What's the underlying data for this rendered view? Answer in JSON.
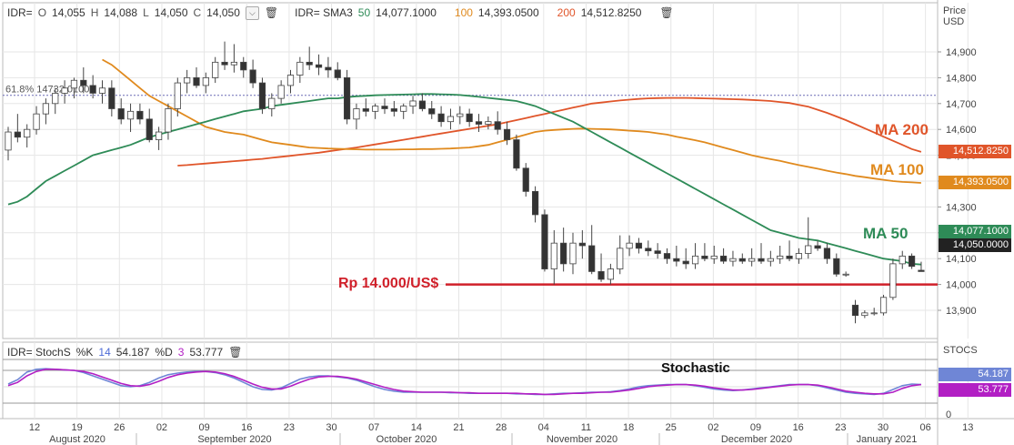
{
  "header": {
    "symbol": "IDR=",
    "ohlc": {
      "o_label": "O",
      "o": "14,055",
      "h_label": "H",
      "h": "14,088",
      "l_label": "L",
      "l": "14,050",
      "c_label": "C",
      "c": "14,050"
    },
    "sma_label": "IDR= SMA3",
    "sma": [
      {
        "period": "50",
        "value": "14,077.1000",
        "color": "#2e8b57"
      },
      {
        "period": "100",
        "value": "14,393.0500",
        "color": "#e08a1e"
      },
      {
        "period": "200",
        "value": "14,512.8250",
        "color": "#e0552a"
      }
    ],
    "dropdown_icon": "chevron-down-icon",
    "trash_icon": "trash-icon"
  },
  "price_axis": {
    "title_line1": "Price",
    "title_line2": "USD",
    "ticks": [
      "14,900",
      "14,800",
      "14,700",
      "14,600",
      "14,500",
      "14,400",
      "14,300",
      "14,200",
      "14,100",
      "14,000",
      "13,900"
    ]
  },
  "tags": {
    "ma200": "14,512.8250",
    "ma100": "14,393.0500",
    "ma50": "14,077.1000",
    "close": "14,050.0000"
  },
  "fib": {
    "label": "61.8%",
    "value": "14732.0100"
  },
  "annotations": {
    "ma200": "MA 200",
    "ma100": "MA 100",
    "ma50": "MA 50",
    "support": "Rp 14.000/US$",
    "stochastic": "Stochastic"
  },
  "stoch_header": {
    "label": "IDR= StochS",
    "k_label": "%K",
    "k_period": "14",
    "k_value": "54.187",
    "d_label": "%D",
    "d_period": "3",
    "d_value": "53.777",
    "right_title": "STOCS"
  },
  "stoch_tags": {
    "k": "54.187",
    "d": "53.777",
    "zero": "0"
  },
  "x_axis": {
    "days": [
      "12",
      "19",
      "26",
      "02",
      "09",
      "16",
      "23",
      "30",
      "07",
      "14",
      "21",
      "28",
      "04",
      "11",
      "18",
      "25",
      "02",
      "09",
      "16",
      "23",
      "30",
      "06",
      "13"
    ],
    "months": [
      "August 2020",
      "September 2020",
      "October 2020",
      "November 2020",
      "December 2020",
      "January 2021"
    ]
  },
  "colors": {
    "ma50": "#2e8b57",
    "ma100": "#e08a1e",
    "ma200": "#e0552a",
    "support": "#d0202a",
    "stoch_k": "#6f86d6",
    "stoch_d": "#b21fc4",
    "candle_up": "#ffffff",
    "candle_down": "#333333"
  },
  "chart_data": {
    "type": "line",
    "candles": [
      [
        14520,
        14610,
        14480,
        14590
      ],
      [
        14590,
        14660,
        14550,
        14570
      ],
      [
        14570,
        14620,
        14530,
        14600
      ],
      [
        14600,
        14690,
        14580,
        14660
      ],
      [
        14660,
        14720,
        14620,
        14700
      ],
      [
        14700,
        14760,
        14660,
        14740
      ],
      [
        14740,
        14790,
        14700,
        14760
      ],
      [
        14760,
        14800,
        14720,
        14790
      ],
      [
        14790,
        14840,
        14740,
        14770
      ],
      [
        14770,
        14810,
        14720,
        14740
      ],
      [
        14740,
        14790,
        14700,
        14760
      ],
      [
        14760,
        14790,
        14650,
        14680
      ],
      [
        14680,
        14720,
        14620,
        14640
      ],
      [
        14640,
        14700,
        14590,
        14670
      ],
      [
        14670,
        14700,
        14620,
        14640
      ],
      [
        14640,
        14680,
        14550,
        14560
      ],
      [
        14560,
        14610,
        14520,
        14590
      ],
      [
        14590,
        14700,
        14560,
        14680
      ],
      [
        14680,
        14800,
        14650,
        14780
      ],
      [
        14780,
        14830,
        14740,
        14800
      ],
      [
        14800,
        14840,
        14760,
        14770
      ],
      [
        14770,
        14820,
        14740,
        14800
      ],
      [
        14800,
        14880,
        14780,
        14860
      ],
      [
        14860,
        14940,
        14830,
        14850
      ],
      [
        14850,
        14930,
        14820,
        14860
      ],
      [
        14860,
        14880,
        14800,
        14830
      ],
      [
        14830,
        14870,
        14760,
        14780
      ],
      [
        14780,
        14800,
        14660,
        14680
      ],
      [
        14680,
        14740,
        14650,
        14720
      ],
      [
        14720,
        14790,
        14700,
        14770
      ],
      [
        14770,
        14830,
        14740,
        14810
      ],
      [
        14810,
        14880,
        14780,
        14860
      ],
      [
        14860,
        14920,
        14830,
        14850
      ],
      [
        14850,
        14890,
        14810,
        14840
      ],
      [
        14840,
        14880,
        14800,
        14830
      ],
      [
        14830,
        14860,
        14790,
        14800
      ],
      [
        14800,
        14830,
        14620,
        14640
      ],
      [
        14640,
        14700,
        14600,
        14680
      ],
      [
        14680,
        14720,
        14650,
        14670
      ],
      [
        14670,
        14700,
        14640,
        14690
      ],
      [
        14690,
        14720,
        14660,
        14680
      ],
      [
        14680,
        14710,
        14650,
        14670
      ],
      [
        14670,
        14700,
        14640,
        14690
      ],
      [
        14690,
        14730,
        14660,
        14710
      ],
      [
        14710,
        14740,
        14670,
        14680
      ],
      [
        14680,
        14710,
        14640,
        14660
      ],
      [
        14660,
        14690,
        14610,
        14630
      ],
      [
        14630,
        14680,
        14600,
        14650
      ],
      [
        14650,
        14690,
        14620,
        14660
      ],
      [
        14660,
        14680,
        14610,
        14630
      ],
      [
        14630,
        14660,
        14590,
        14620
      ],
      [
        14620,
        14650,
        14600,
        14630
      ],
      [
        14630,
        14670,
        14580,
        14600
      ],
      [
        14600,
        14630,
        14540,
        14560
      ],
      [
        14560,
        14580,
        14440,
        14450
      ],
      [
        14450,
        14470,
        14340,
        14360
      ],
      [
        14360,
        14380,
        14240,
        14270
      ],
      [
        14270,
        14290,
        14050,
        14060
      ],
      [
        14060,
        14210,
        14000,
        14160
      ],
      [
        14160,
        14220,
        14050,
        14080
      ],
      [
        14080,
        14200,
        14040,
        14160
      ],
      [
        14160,
        14210,
        14100,
        14150
      ],
      [
        14150,
        14230,
        14040,
        14050
      ],
      [
        14050,
        14120,
        14010,
        14020
      ],
      [
        14020,
        14080,
        14000,
        14060
      ],
      [
        14060,
        14190,
        14040,
        14140
      ],
      [
        14140,
        14190,
        14110,
        14160
      ],
      [
        14160,
        14180,
        14120,
        14140
      ],
      [
        14140,
        14170,
        14110,
        14130
      ],
      [
        14130,
        14160,
        14100,
        14120
      ],
      [
        14120,
        14140,
        14080,
        14100
      ],
      [
        14100,
        14150,
        14070,
        14090
      ],
      [
        14090,
        14140,
        14060,
        14080
      ],
      [
        14080,
        14160,
        14060,
        14110
      ],
      [
        14110,
        14160,
        14090,
        14100
      ],
      [
        14100,
        14150,
        14080,
        14110
      ],
      [
        14110,
        14140,
        14080,
        14090
      ],
      [
        14090,
        14130,
        14070,
        14100
      ],
      [
        14100,
        14120,
        14080,
        14090
      ],
      [
        14090,
        14140,
        14070,
        14100
      ],
      [
        14100,
        14160,
        14080,
        14090
      ],
      [
        14090,
        14130,
        14070,
        14100
      ],
      [
        14100,
        14150,
        14080,
        14110
      ],
      [
        14110,
        14170,
        14090,
        14100
      ],
      [
        14100,
        14140,
        14080,
        14120
      ],
      [
        14120,
        14260,
        14100,
        14150
      ],
      [
        14150,
        14170,
        14130,
        14140
      ],
      [
        14140,
        14160,
        14080,
        14100
      ],
      [
        14100,
        14120,
        14030,
        14040
      ],
      [
        14040,
        14050,
        14030,
        14040
      ],
      [
        13920,
        13940,
        13850,
        13880
      ],
      [
        13880,
        13900,
        13870,
        13890
      ],
      [
        13890,
        13910,
        13880,
        13890
      ],
      [
        13890,
        13960,
        13880,
        13950
      ],
      [
        13950,
        14100,
        13940,
        14080
      ],
      [
        14080,
        14130,
        14060,
        14110
      ],
      [
        14110,
        14120,
        14060,
        14070
      ],
      [
        14055,
        14088,
        14050,
        14050
      ]
    ],
    "ma50": [
      14310,
      14320,
      14340,
      14370,
      14400,
      14420,
      14440,
      14460,
      14480,
      14500,
      14510,
      14520,
      14530,
      14540,
      14555,
      14570,
      14580,
      14590,
      14600,
      14610,
      14620,
      14630,
      14640,
      14650,
      14660,
      14670,
      14675,
      14680,
      14690,
      14695,
      14700,
      14705,
      14710,
      14715,
      14720,
      14720,
      14725,
      14728,
      14730,
      14732,
      14733,
      14734,
      14735,
      14736,
      14737,
      14737,
      14736,
      14735,
      14733,
      14730,
      14726,
      14722,
      14718,
      14714,
      14710,
      14700,
      14690,
      14675,
      14660,
      14645,
      14630,
      14610,
      14590,
      14570,
      14550,
      14530,
      14510,
      14490,
      14470,
      14450,
      14430,
      14410,
      14390,
      14370,
      14350,
      14330,
      14310,
      14290,
      14270,
      14250,
      14230,
      14210,
      14200,
      14190,
      14180,
      14175,
      14170,
      14160,
      14150,
      14140,
      14130,
      14120,
      14110,
      14100,
      14095,
      14090,
      14080,
      14077
    ],
    "ma100": [
      14870,
      14850,
      14820,
      14790,
      14760,
      14730,
      14710,
      14690,
      14670,
      14650,
      14630,
      14610,
      14600,
      14590,
      14585,
      14580,
      14570,
      14560,
      14550,
      14545,
      14540,
      14535,
      14530,
      14528,
      14526,
      14525,
      14524,
      14523,
      14522,
      14522,
      14522,
      14522,
      14523,
      14523,
      14524,
      14524,
      14525,
      14526,
      14528,
      14530,
      14535,
      14540,
      14550,
      14560,
      14570,
      14580,
      14590,
      14595,
      14598,
      14600,
      14602,
      14603,
      14602,
      14601,
      14600,
      14598,
      14595,
      14593,
      14590,
      14585,
      14580,
      14572,
      14565,
      14558,
      14550,
      14540,
      14530,
      14520,
      14510,
      14500,
      14492,
      14485,
      14478,
      14470,
      14462,
      14455,
      14448,
      14440,
      14433,
      14427,
      14420,
      14415,
      14410,
      14405,
      14400,
      14397,
      14395,
      14393
    ],
    "ma200": [
      14460,
      14462,
      14465,
      14468,
      14471,
      14474,
      14477,
      14480,
      14483,
      14486,
      14490,
      14494,
      14498,
      14502,
      14506,
      14510,
      14515,
      14520,
      14525,
      14530,
      14536,
      14542,
      14548,
      14554,
      14560,
      14566,
      14572,
      14578,
      14584,
      14590,
      14596,
      14602,
      14608,
      14614,
      14620,
      14628,
      14636,
      14644,
      14652,
      14660,
      14668,
      14676,
      14684,
      14692,
      14700,
      14704,
      14708,
      14712,
      14715,
      14718,
      14720,
      14721,
      14722,
      14722,
      14722,
      14721,
      14720,
      14719,
      14718,
      14717,
      14716,
      14714,
      14712,
      14710,
      14706,
      14702,
      14695,
      14688,
      14676,
      14664,
      14650,
      14636,
      14620,
      14604,
      14588,
      14572,
      14556,
      14540,
      14524,
      14513
    ],
    "support": 14000,
    "fib_level": 14732.01,
    "ylim": [
      13850,
      14980
    ],
    "stoch_k": [
      55,
      63,
      77,
      82,
      83,
      82,
      81,
      80,
      76,
      70,
      64,
      58,
      52,
      50,
      52,
      58,
      66,
      72,
      75,
      77,
      78,
      78,
      76,
      72,
      66,
      58,
      50,
      45,
      44,
      48,
      56,
      64,
      68,
      70,
      70,
      68,
      66,
      62,
      56,
      50,
      45,
      42,
      40,
      40,
      40,
      40,
      40,
      39,
      39,
      38,
      38,
      38,
      38,
      38,
      37,
      37,
      36,
      36,
      37,
      38,
      38,
      39,
      40,
      40,
      41,
      43,
      46,
      50,
      52,
      53,
      54,
      54,
      54,
      52,
      49,
      46,
      44,
      43,
      44,
      46,
      48,
      50,
      52,
      54,
      54,
      54,
      52,
      48,
      44,
      40,
      38,
      37,
      36,
      38,
      45,
      52,
      55,
      54
    ],
    "stoch_d": [
      52,
      58,
      70,
      78,
      82,
      82,
      81,
      80,
      78,
      74,
      68,
      62,
      56,
      52,
      51,
      54,
      60,
      67,
      72,
      75,
      77,
      78,
      77,
      74,
      69,
      62,
      55,
      49,
      46,
      46,
      51,
      58,
      64,
      68,
      69,
      69,
      67,
      64,
      59,
      54,
      49,
      45,
      42,
      41,
      40,
      40,
      40,
      40,
      39,
      39,
      38,
      38,
      38,
      38,
      38,
      37,
      37,
      36,
      36,
      37,
      38,
      38,
      39,
      40,
      40,
      42,
      44,
      47,
      50,
      52,
      53,
      54,
      54,
      53,
      51,
      48,
      46,
      44,
      44,
      45,
      47,
      49,
      51,
      53,
      54,
      54,
      53,
      50,
      46,
      42,
      40,
      38,
      37,
      37,
      40,
      47,
      52,
      54
    ],
    "stoch_ylim": [
      0,
      100
    ],
    "stoch_ticks": [
      "0",
      "20",
      "50",
      "80",
      "100"
    ]
  }
}
